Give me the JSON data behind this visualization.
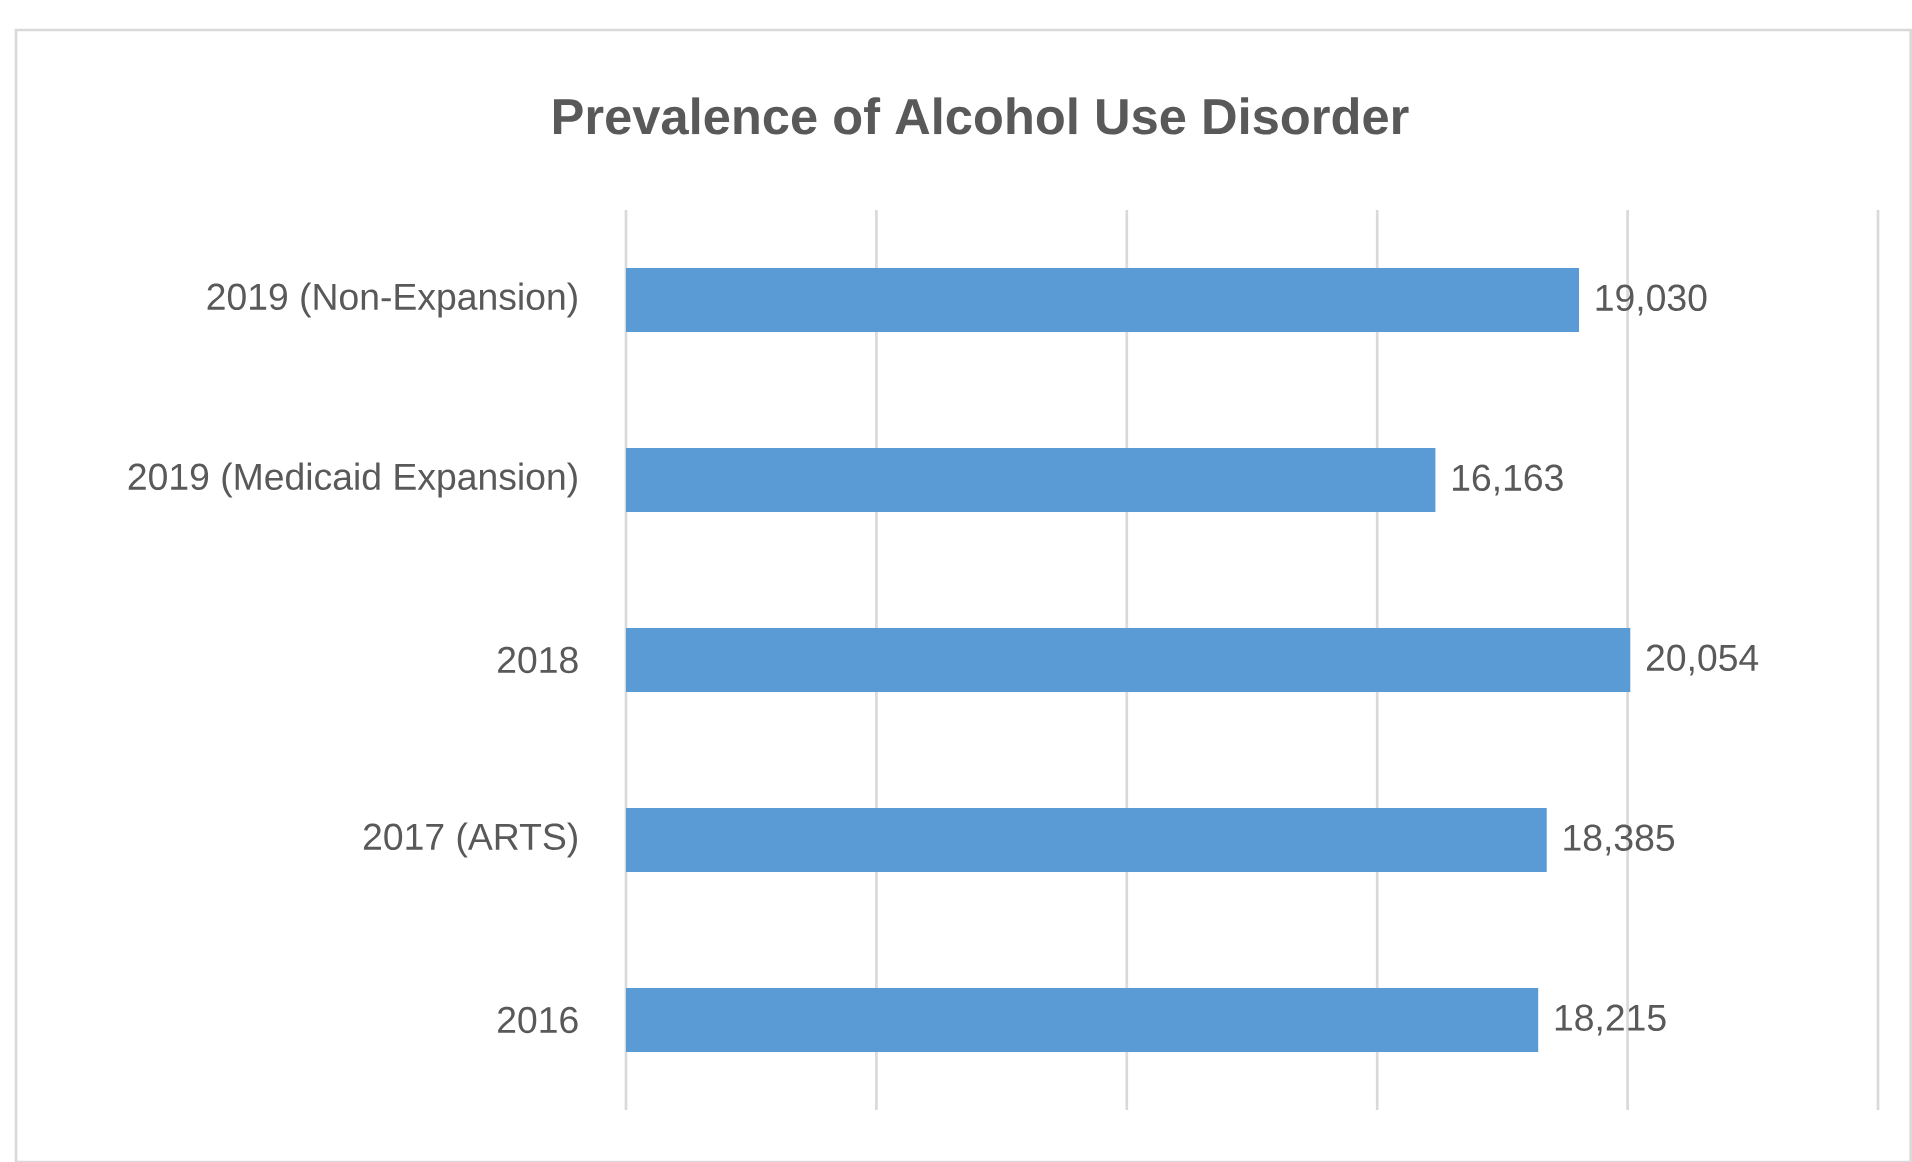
{
  "chart_data": {
    "type": "bar",
    "orientation": "horizontal",
    "title": "Prevalence of Alcohol Use Disorder",
    "categories": [
      "2019 (Non-Expansion)",
      "2019 (Medicaid Expansion)",
      "2018",
      "2017 (ARTS)",
      "2016"
    ],
    "values": [
      19030,
      16163,
      20054,
      18385,
      18215
    ],
    "value_labels": [
      "19,030",
      "16,163",
      "20,054",
      "18,385",
      "18,215"
    ],
    "color": "#5b9bd5",
    "xlim": [
      0,
      25000
    ],
    "xticks": [
      {
        "value": 0,
        "label": null
      },
      {
        "value": 5000,
        "label": null
      },
      {
        "value": 10000,
        "label": null
      },
      {
        "value": 15000,
        "label": null
      },
      {
        "value": 20000,
        "label": null
      },
      {
        "value": 25000,
        "label": null
      }
    ],
    "tick_labels": "y",
    "grid": "x"
  }
}
